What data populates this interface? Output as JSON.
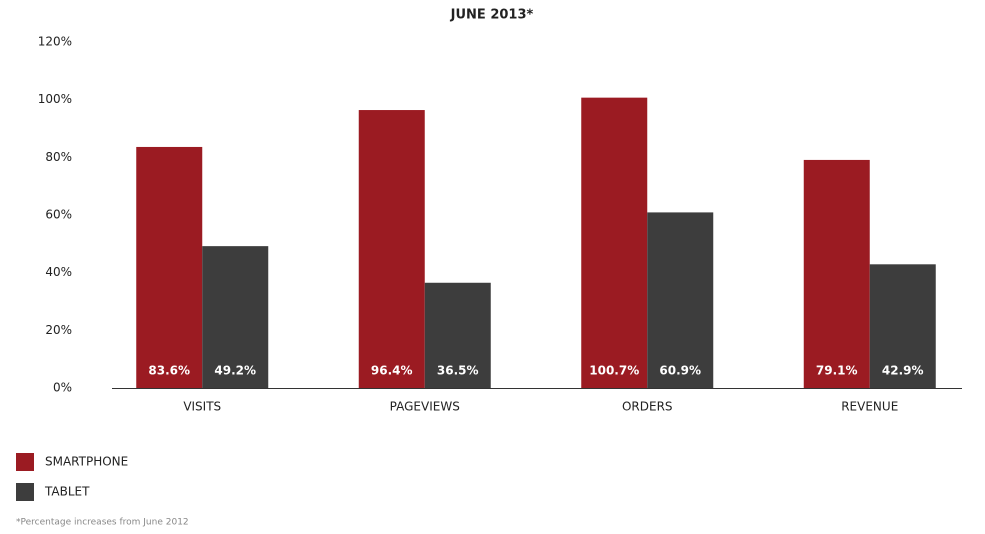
{
  "chart_data": {
    "type": "bar",
    "title": "JUNE 2013*",
    "categories": [
      "VISITS",
      "PAGEVIEWS",
      "ORDERS",
      "REVENUE"
    ],
    "series": [
      {
        "name": "SMARTPHONE",
        "color": "#9b1b22",
        "values": [
          83.6,
          96.4,
          100.7,
          79.1
        ],
        "value_labels": [
          "83.6%",
          "96.4%",
          "100.7%",
          "79.1%"
        ]
      },
      {
        "name": "TABLET",
        "color": "#3d3d3d",
        "values": [
          49.2,
          36.5,
          60.9,
          42.9
        ],
        "value_labels": [
          "49.2%",
          "36.5%",
          "60.9%",
          "42.9%"
        ]
      }
    ],
    "ylim": [
      0,
      120
    ],
    "yticks": [
      {
        "value": 0,
        "label": "0%"
      },
      {
        "value": 20,
        "label": "20%"
      },
      {
        "value": 40,
        "label": "40%"
      },
      {
        "value": 60,
        "label": "60%"
      },
      {
        "value": 80,
        "label": "80%"
      },
      {
        "value": 100,
        "label": "100%"
      },
      {
        "value": 120,
        "label": "120%"
      }
    ],
    "grid": false,
    "footnote": "*Percentage increases from June 2012"
  }
}
